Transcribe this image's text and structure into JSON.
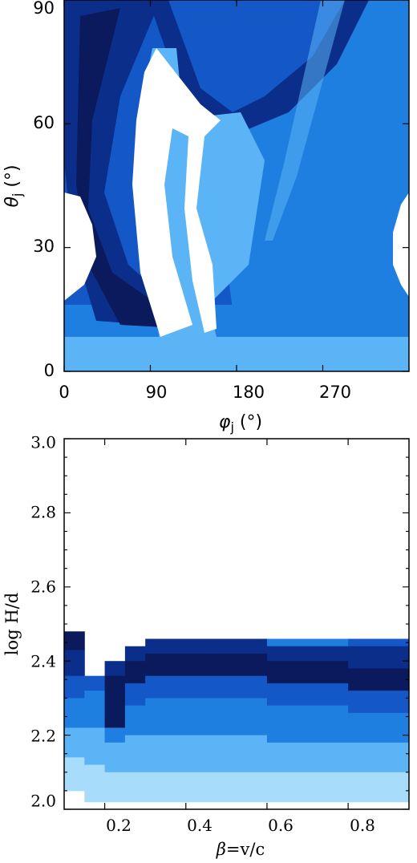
{
  "colors": {
    "navy": "#0a1a5c",
    "darkblue": "#0b2e8a",
    "blue": "#1458c8",
    "midblue": "#1e7fe0",
    "lightblue": "#5bb4f5",
    "paleblue": "#a8dcfb",
    "white": "#ffffff"
  },
  "chart_data": [
    {
      "type": "heatmap",
      "title": "",
      "xlabel_symbol": "φ",
      "xlabel_sub": "j",
      "xlabel_unit": " (°)",
      "ylabel_symbol": "θ",
      "ylabel_sub": "j",
      "ylabel_unit": " (°)",
      "xlim": [
        0,
        360
      ],
      "ylim": [
        0,
        90
      ],
      "xticks": [
        "0",
        "90",
        "180",
        "270"
      ],
      "yticks": [
        "0",
        "30",
        "60",
        "90"
      ],
      "colormap": "white-to-navy blues"
    },
    {
      "type": "heatmap",
      "title": "",
      "xlabel_symbol": "β",
      "xlabel_text": "=v/c",
      "ylabel": "log H/d",
      "xlim": [
        0.1,
        0.95
      ],
      "ylim": [
        2.0,
        3.0
      ],
      "xticks": [
        "0.2",
        "0.4",
        "0.6",
        "0.8"
      ],
      "yticks": [
        "2.0",
        "2.2",
        "2.4",
        "2.6",
        "2.8",
        "3.0"
      ],
      "columns": [
        {
          "x": [
            0.1,
            0.15
          ],
          "bands": [
            [
              2.43,
              2.48,
              "navy"
            ],
            [
              2.36,
              2.43,
              "darkblue"
            ],
            [
              2.3,
              2.36,
              "blue"
            ],
            [
              2.22,
              2.3,
              "midblue"
            ],
            [
              2.14,
              2.22,
              "lightblue"
            ],
            [
              2.05,
              2.14,
              "paleblue"
            ]
          ]
        },
        {
          "x": [
            0.15,
            0.2
          ],
          "bands": [
            [
              2.32,
              2.36,
              "blue"
            ],
            [
              2.22,
              2.32,
              "midblue"
            ],
            [
              2.12,
              2.22,
              "lightblue"
            ],
            [
              2.02,
              2.12,
              "paleblue"
            ]
          ]
        },
        {
          "x": [
            0.2,
            0.25
          ],
          "bands": [
            [
              2.36,
              2.4,
              "darkblue"
            ],
            [
              2.22,
              2.36,
              "navy"
            ],
            [
              2.18,
              2.22,
              "midblue"
            ],
            [
              2.1,
              2.18,
              "lightblue"
            ],
            [
              2.02,
              2.1,
              "paleblue"
            ]
          ]
        },
        {
          "x": [
            0.25,
            0.3
          ],
          "bands": [
            [
              2.4,
              2.44,
              "darkblue"
            ],
            [
              2.34,
              2.4,
              "navy"
            ],
            [
              2.28,
              2.34,
              "blue"
            ],
            [
              2.2,
              2.28,
              "midblue"
            ],
            [
              2.1,
              2.2,
              "lightblue"
            ],
            [
              2.02,
              2.1,
              "paleblue"
            ]
          ]
        },
        {
          "x": [
            0.3,
            0.45
          ],
          "bands": [
            [
              2.42,
              2.46,
              "darkblue"
            ],
            [
              2.36,
              2.42,
              "navy"
            ],
            [
              2.3,
              2.36,
              "blue"
            ],
            [
              2.2,
              2.3,
              "midblue"
            ],
            [
              2.1,
              2.2,
              "lightblue"
            ],
            [
              2.02,
              2.1,
              "paleblue"
            ]
          ]
        },
        {
          "x": [
            0.45,
            0.6
          ],
          "bands": [
            [
              2.42,
              2.46,
              "darkblue"
            ],
            [
              2.36,
              2.42,
              "navy"
            ],
            [
              2.3,
              2.36,
              "blue"
            ],
            [
              2.2,
              2.3,
              "midblue"
            ],
            [
              2.1,
              2.2,
              "lightblue"
            ],
            [
              2.02,
              2.1,
              "paleblue"
            ]
          ]
        },
        {
          "x": [
            0.6,
            0.8
          ],
          "bands": [
            [
              2.44,
              2.46,
              "midblue"
            ],
            [
              2.4,
              2.44,
              "darkblue"
            ],
            [
              2.34,
              2.4,
              "navy"
            ],
            [
              2.28,
              2.34,
              "blue"
            ],
            [
              2.18,
              2.28,
              "midblue"
            ],
            [
              2.1,
              2.18,
              "lightblue"
            ],
            [
              2.02,
              2.1,
              "paleblue"
            ]
          ]
        },
        {
          "x": [
            0.8,
            0.95
          ],
          "bands": [
            [
              2.44,
              2.46,
              "blue"
            ],
            [
              2.38,
              2.44,
              "darkblue"
            ],
            [
              2.32,
              2.38,
              "navy"
            ],
            [
              2.26,
              2.32,
              "blue"
            ],
            [
              2.18,
              2.26,
              "midblue"
            ],
            [
              2.1,
              2.18,
              "lightblue"
            ],
            [
              2.02,
              2.1,
              "paleblue"
            ]
          ]
        }
      ]
    }
  ]
}
